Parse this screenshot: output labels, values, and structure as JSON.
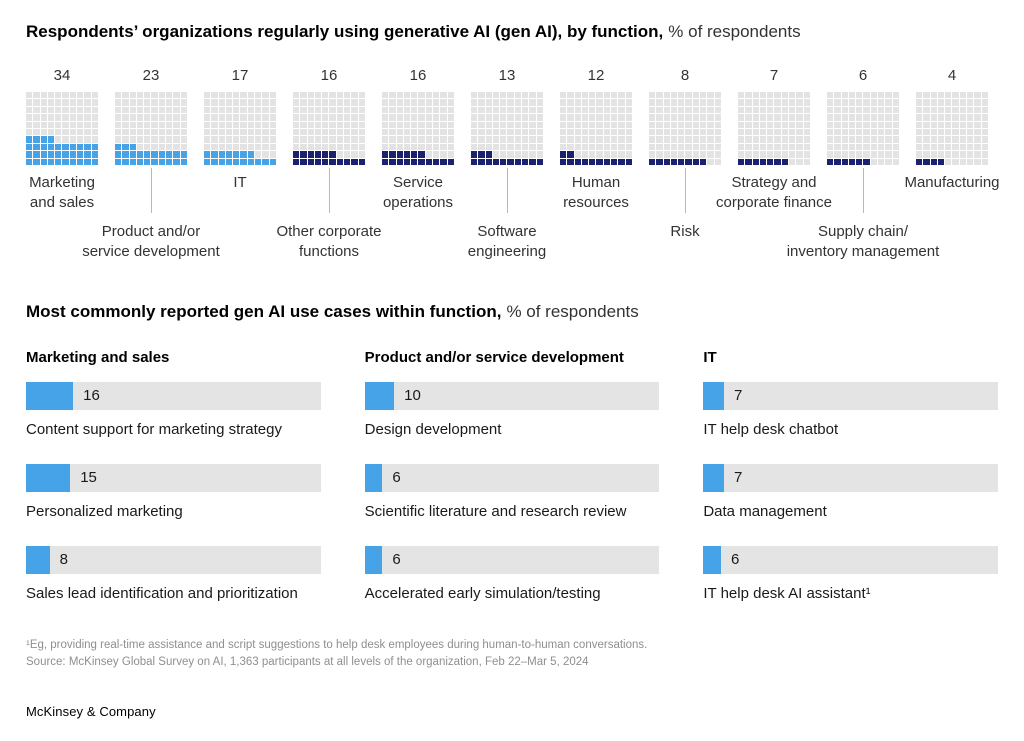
{
  "header": {
    "title_bold": "Respondents’ organizations regularly using generative AI (gen AI), by function,",
    "title_light": "% of respondents"
  },
  "section2_header": {
    "title_bold": "Most commonly reported gen AI use cases within function,",
    "title_light": "% of respondents"
  },
  "chart_data": [
    {
      "type": "waffle",
      "title": "Respondents’ organizations regularly using generative AI (gen AI), by function, % of respondents",
      "grid": [
        10,
        10
      ],
      "unit": "% of respondents",
      "palette": {
        "light": "#47a3e8",
        "dark": "#1a216e",
        "empty": "#e3e3e3"
      },
      "items": [
        {
          "label": "Marketing and sales",
          "display": "Marketing\nand sales",
          "value": 34,
          "palette": "light",
          "label_row": "top"
        },
        {
          "label": "Product and/or service development",
          "display": "Product and/or\nservice development",
          "value": 23,
          "palette": "light",
          "label_row": "bottom"
        },
        {
          "label": "IT",
          "display": "IT",
          "value": 17,
          "palette": "light",
          "label_row": "top"
        },
        {
          "label": "Other corporate functions",
          "display": "Other corporate\nfunctions",
          "value": 16,
          "palette": "dark",
          "label_row": "bottom"
        },
        {
          "label": "Service operations",
          "display": "Service\noperations",
          "value": 16,
          "palette": "dark",
          "label_row": "top"
        },
        {
          "label": "Software engineering",
          "display": "Software\nengineering",
          "value": 13,
          "palette": "dark",
          "label_row": "bottom"
        },
        {
          "label": "Human resources",
          "display": "Human\nresources",
          "value": 12,
          "palette": "dark",
          "label_row": "top"
        },
        {
          "label": "Risk",
          "display": "Risk",
          "value": 8,
          "palette": "dark",
          "label_row": "bottom"
        },
        {
          "label": "Strategy and corporate finance",
          "display": "Strategy and\ncorporate finance",
          "value": 7,
          "palette": "dark",
          "label_row": "top"
        },
        {
          "label": "Supply chain/inventory management",
          "display": "Supply chain/\ninventory management",
          "value": 6,
          "palette": "dark",
          "label_row": "bottom"
        },
        {
          "label": "Manufacturing",
          "display": "Manufacturing",
          "value": 4,
          "palette": "dark",
          "label_row": "top"
        }
      ]
    },
    {
      "type": "bar",
      "title": "Most commonly reported gen AI use cases within function, % of respondents",
      "xlim": [
        0,
        100
      ],
      "colors": {
        "fill": "#47a3e8",
        "track": "#e4e4e4"
      },
      "groups": [
        {
          "name": "Marketing and sales",
          "bars": [
            {
              "label": "Content support for marketing strategy",
              "value": 16
            },
            {
              "label": "Personalized marketing",
              "value": 15
            },
            {
              "label": "Sales lead identification and prioritization",
              "value": 8
            }
          ]
        },
        {
          "name": "Product and/or service development",
          "bars": [
            {
              "label": "Design development",
              "value": 10
            },
            {
              "label": "Scientific literature and research review",
              "value": 6
            },
            {
              "label": "Accelerated early simulation/testing",
              "value": 6
            }
          ]
        },
        {
          "name": "IT",
          "bars": [
            {
              "label": "IT help desk chatbot",
              "value": 7
            },
            {
              "label": "Data management",
              "value": 7
            },
            {
              "label": "IT help desk AI assistant¹",
              "value": 6
            }
          ]
        }
      ]
    }
  ],
  "footnotes": {
    "note": "¹Eg, providing real-time assistance and script suggestions to help desk employees during human-to-human conversations.",
    "source": "Source: McKinsey Global Survey on AI, 1,363 participants at all levels of the organization, Feb 22–Mar 5, 2024"
  },
  "footer": {
    "brand": "McKinsey & Company"
  }
}
